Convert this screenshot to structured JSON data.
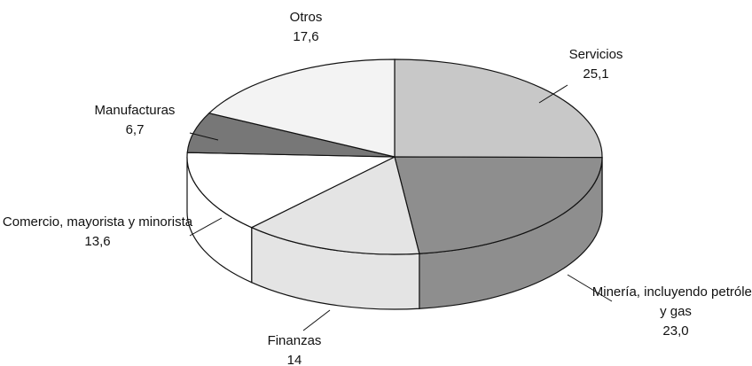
{
  "chart_data": {
    "type": "pie3d",
    "categories": [
      "Servicios",
      "Minería, incluyendo petróleo y gas",
      "Finanzas",
      "Comercio, mayorista y minorista",
      "Manufacturas",
      "Otros"
    ],
    "values": [
      25.1,
      23.0,
      14,
      13.6,
      6.7,
      17.6
    ],
    "value_labels": [
      "25,1",
      "23,0",
      "14",
      "13,6",
      "6,7",
      "17,6"
    ],
    "colors": [
      "#c8c8c8",
      "#8e8e8e",
      "#e4e4e4",
      "#ffffff",
      "#777777",
      "#f3f3f3"
    ]
  }
}
